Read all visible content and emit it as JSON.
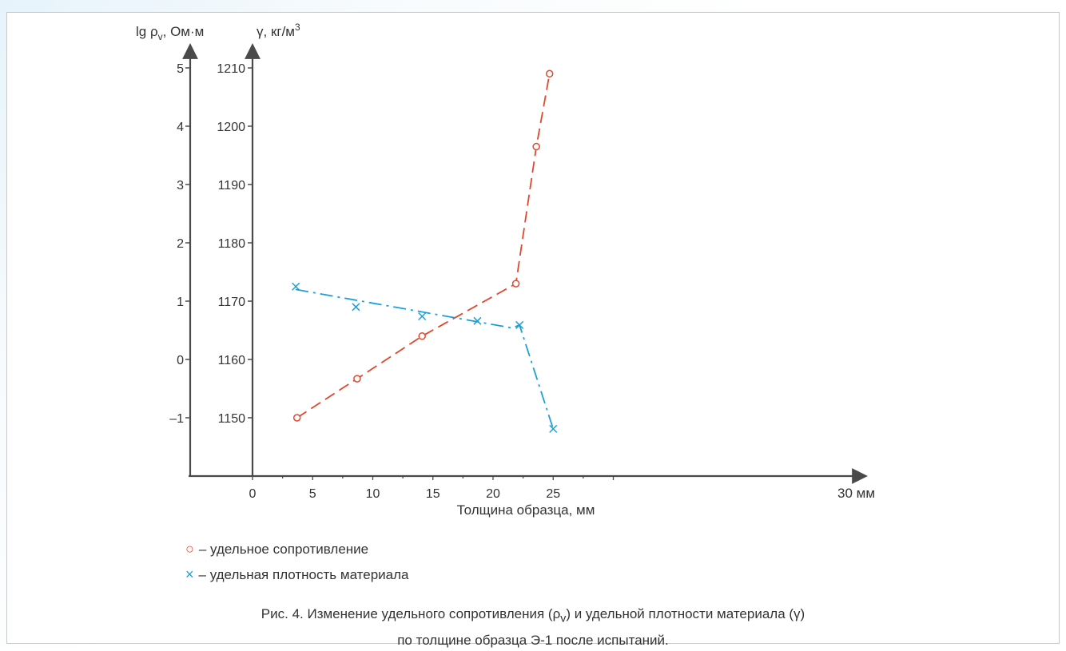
{
  "chart_data": {
    "type": "line",
    "x_axis": {
      "label": "Толщина образца, мм",
      "unit_label": "30 мм",
      "ticks": [
        "0",
        "5",
        "10",
        "15",
        "20",
        "25"
      ],
      "range": [
        -2.6,
        31
      ]
    },
    "y_axis_left": {
      "label_main": "lg ρ",
      "label_sub": "v",
      "label_tail": ", Ом·м",
      "ticks": [
        "–1",
        "0",
        "1",
        "2",
        "3",
        "4",
        "5"
      ],
      "range": [
        -2,
        5.2
      ]
    },
    "y_axis_right": {
      "label_main": "γ, кг/м",
      "label_sup": "3",
      "ticks": [
        "1150",
        "1160",
        "1170",
        "1180",
        "1190",
        "1200",
        "1210"
      ],
      "range": [
        1140,
        1212
      ]
    },
    "series": [
      {
        "name": "удельное сопротивление",
        "marker": "circle",
        "color": "#e0472b",
        "dash": "dashed",
        "axis": "left",
        "points": [
          [
            3.7,
            -1.0
          ],
          [
            8.7,
            -0.33
          ],
          [
            14.1,
            0.4
          ],
          [
            21.9,
            1.3
          ],
          [
            23.6,
            3.65
          ],
          [
            24.7,
            4.9
          ]
        ]
      },
      {
        "name": "удельная плотность материала",
        "marker": "cross",
        "color": "#1d9fd8",
        "dash": "dashdot",
        "axis": "right",
        "points": [
          [
            3.6,
            1172.5
          ],
          [
            8.6,
            1169.0
          ],
          [
            14.1,
            1167.4
          ],
          [
            18.7,
            1166.6
          ],
          [
            22.2,
            1165.9
          ],
          [
            25.0,
            1148.1
          ]
        ],
        "line": [
          [
            3.6,
            1172.0
          ],
          [
            21.6,
            1165.4
          ],
          [
            22.2,
            1165.9
          ],
          [
            25.0,
            1148.1
          ]
        ]
      }
    ],
    "legend": [
      {
        "symbol": "○",
        "text": " – удельное сопротивление"
      },
      {
        "symbol": "×",
        "text": " – удельная плотность материала"
      }
    ],
    "caption": {
      "line1_a": "Рис. 4. Изменение удельного сопротивления (ρ",
      "line1_sub": "v",
      "line1_b": ") и удельной плотности материала (γ)",
      "line2": "по толщине образца Э-1 после испытаний."
    }
  }
}
